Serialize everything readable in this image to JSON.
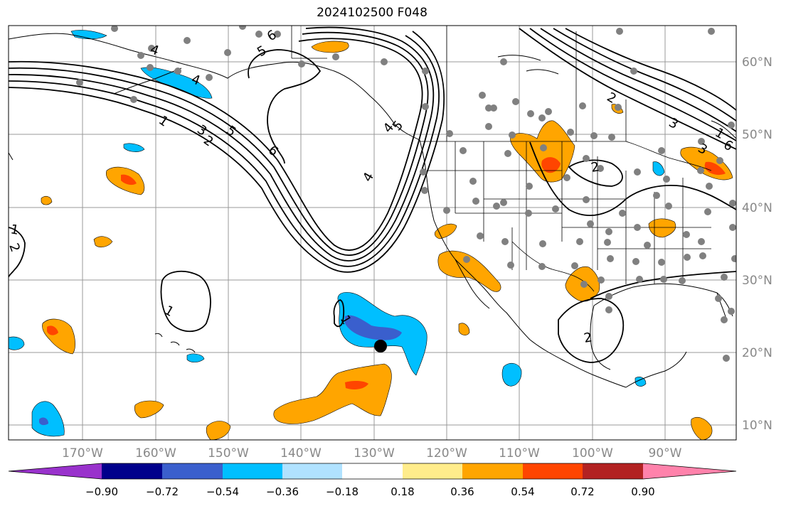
{
  "title": "2024102500 F048",
  "lon_labels": [
    "170°W",
    "160°W",
    "150°W",
    "140°W",
    "130°W",
    "120°W",
    "110°W",
    "100°W",
    "90°W"
  ],
  "lat_labels": [
    "60°N",
    "50°N",
    "40°N",
    "30°N",
    "20°N",
    "10°N"
  ],
  "colorbar": {
    "tick_labels": [
      "−0.90",
      "−0.72",
      "−0.54",
      "−0.36",
      "−0.18",
      "0.18",
      "0.36",
      "0.54",
      "0.72",
      "0.90"
    ],
    "colors": [
      "#9932cc",
      "#00008b",
      "#3a5fcd",
      "#00bfff",
      "#b0e2ff",
      "#ffffff",
      "#ffec8b",
      "#ffa500",
      "#ff4500",
      "#b22222",
      "#ff82ab"
    ]
  },
  "contour_labels": [
    "1",
    "2",
    "3",
    "4",
    "5",
    "6",
    "1",
    "2",
    "3",
    "4",
    "5",
    "6",
    "1",
    "1",
    "2",
    "2",
    "1",
    "2",
    "3",
    "4",
    "5",
    "6",
    "4"
  ],
  "marker": "storm-center-dot",
  "station_color": "#808080"
}
